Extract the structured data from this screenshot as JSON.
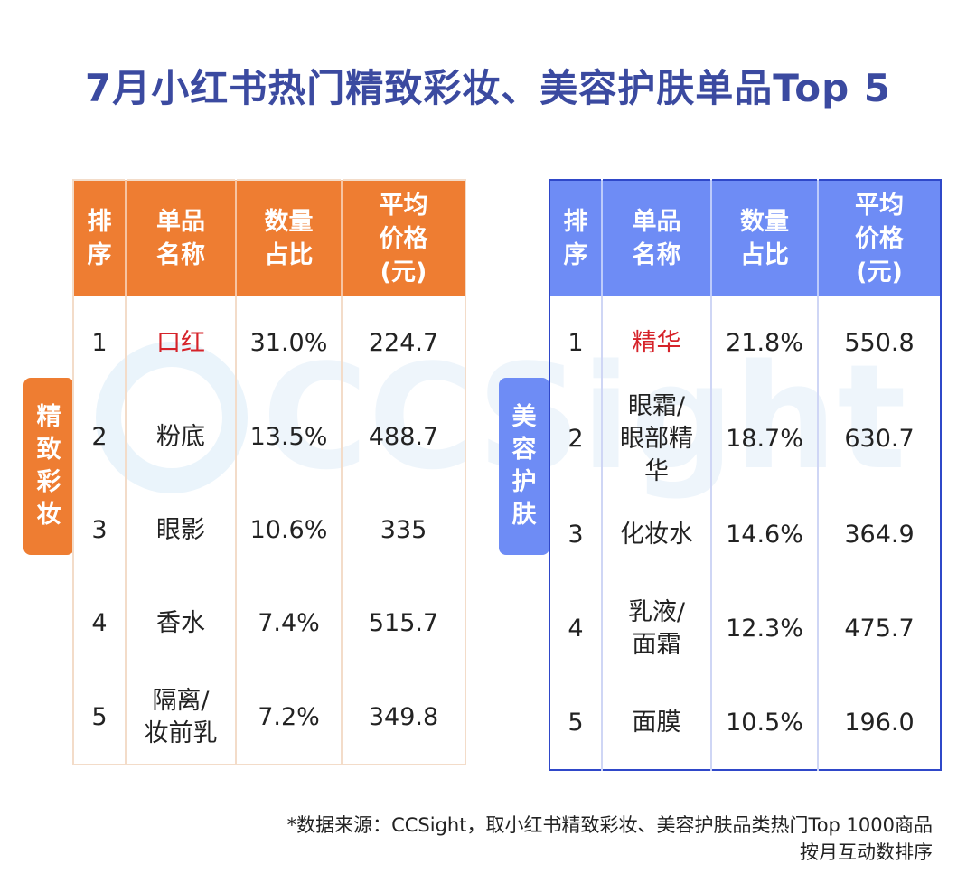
{
  "title": "7月小红书热门精致彩妆、美容护肤单品Top 5",
  "watermark": "CCSight",
  "chart_data": [
    {
      "type": "table",
      "category_label": "精致彩妆",
      "columns": [
        "排\n序",
        "单品\n名称",
        "数量\n占比",
        "平均\n价格\n(元)"
      ],
      "rows": [
        {
          "rank": "1",
          "name": "口红",
          "share": "31.0%",
          "price": "224.7",
          "highlight": true
        },
        {
          "rank": "2",
          "name": "粉底",
          "share": "13.5%",
          "price": "488.7"
        },
        {
          "rank": "3",
          "name": "眼影",
          "share": "10.6%",
          "price": "335"
        },
        {
          "rank": "4",
          "name": "香水",
          "share": "7.4%",
          "price": "515.7"
        },
        {
          "rank": "5",
          "name": "隔离/\n妆前乳",
          "share": "7.2%",
          "price": "349.8"
        }
      ]
    },
    {
      "type": "table",
      "category_label": "美容护肤",
      "columns": [
        "排\n序",
        "单品\n名称",
        "数量\n占比",
        "平均\n价格\n(元)"
      ],
      "rows": [
        {
          "rank": "1",
          "name": "精华",
          "share": "21.8%",
          "price": "550.8",
          "highlight": true
        },
        {
          "rank": "2",
          "name": "眼霜/\n眼部精\n华",
          "share": "18.7%",
          "price": "630.7"
        },
        {
          "rank": "3",
          "name": "化妆水",
          "share": "14.6%",
          "price": "364.9"
        },
        {
          "rank": "4",
          "name": "乳液/\n面霜",
          "share": "12.3%",
          "price": "475.7"
        },
        {
          "rank": "5",
          "name": "面膜",
          "share": "10.5%",
          "price": "196.0"
        }
      ]
    }
  ],
  "footnote": {
    "line1": "*数据来源：CCSight，取小红书精致彩妆、美容护肤品类热门Top 1000商品",
    "line2": "按月互动数排序"
  },
  "colors": {
    "title": "#3b4aa0",
    "makeup_accent": "#ee7d32",
    "skincare_accent": "#6e8cf5",
    "highlight": "#d6232a"
  }
}
